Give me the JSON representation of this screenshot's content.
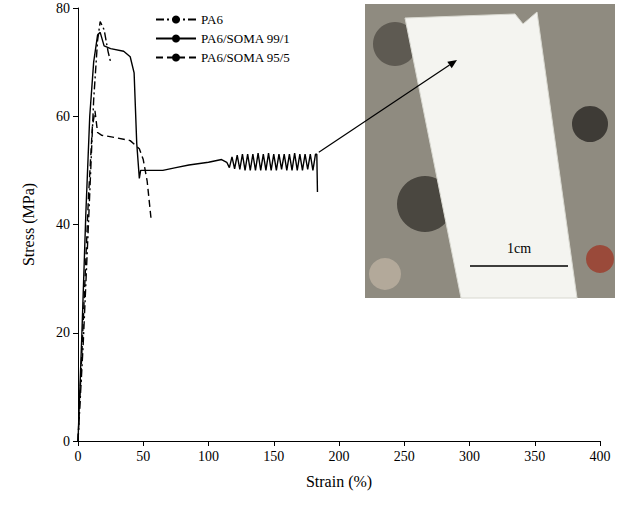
{
  "chart_data": {
    "type": "line",
    "x_label": "Strain (%)",
    "y_label": "Stress (MPa)",
    "xlim": [
      0,
      400
    ],
    "xticks": [
      0,
      50,
      100,
      150,
      200,
      250,
      300,
      350,
      400
    ],
    "ylim": [
      0,
      80
    ],
    "yticks": [
      0,
      20,
      40,
      60,
      80
    ],
    "grid": false,
    "legend": "top",
    "inset": {
      "scale_bar_label": "1cm"
    },
    "series": [
      {
        "name": "PA6",
        "color": "#000000",
        "line_style": "dashdot",
        "x": [
          0,
          4,
          8,
          12,
          15,
          17,
          20,
          23,
          25
        ],
        "values": [
          0,
          18,
          40,
          63,
          74,
          77.5,
          76,
          72,
          70
        ]
      },
      {
        "name": "PA6/SOMA 99/1",
        "color": "#000000",
        "line_style": "solid",
        "x": [
          0,
          3,
          6,
          9,
          12,
          15,
          17,
          20,
          25,
          35,
          40,
          43,
          45,
          47,
          48,
          55,
          65,
          75,
          85,
          100,
          110,
          114,
          116,
          118,
          120,
          122,
          124,
          126,
          128,
          130,
          132,
          134,
          136,
          138,
          140,
          142,
          144,
          146,
          148,
          150,
          152,
          154,
          156,
          158,
          160,
          162,
          164,
          166,
          168,
          170,
          172,
          174,
          176,
          178,
          180,
          182,
          183,
          183.5
        ],
        "values": [
          0,
          20,
          42,
          60,
          70,
          75,
          75.5,
          73,
          72.5,
          72,
          71,
          68,
          55,
          48.5,
          50,
          50,
          50,
          50.5,
          51,
          51.5,
          52,
          51.5,
          50.5,
          52.5,
          50.3,
          52.8,
          50.2,
          53,
          50,
          53,
          50,
          53,
          50,
          53.2,
          50,
          53,
          50,
          53.2,
          50,
          53,
          50,
          53,
          50.2,
          53,
          50,
          53,
          50,
          53.2,
          50,
          53,
          50,
          53,
          50.2,
          53,
          50,
          53,
          53,
          46
        ]
      },
      {
        "name": "PA6/SOMA 95/5",
        "color": "#000000",
        "line_style": "dashed",
        "x": [
          0,
          4,
          8,
          11,
          13,
          15,
          18,
          30,
          40,
          47,
          50,
          53,
          56
        ],
        "values": [
          0,
          22,
          45,
          58,
          61,
          57,
          56.5,
          56,
          55.5,
          54,
          52,
          48,
          41
        ]
      }
    ]
  }
}
